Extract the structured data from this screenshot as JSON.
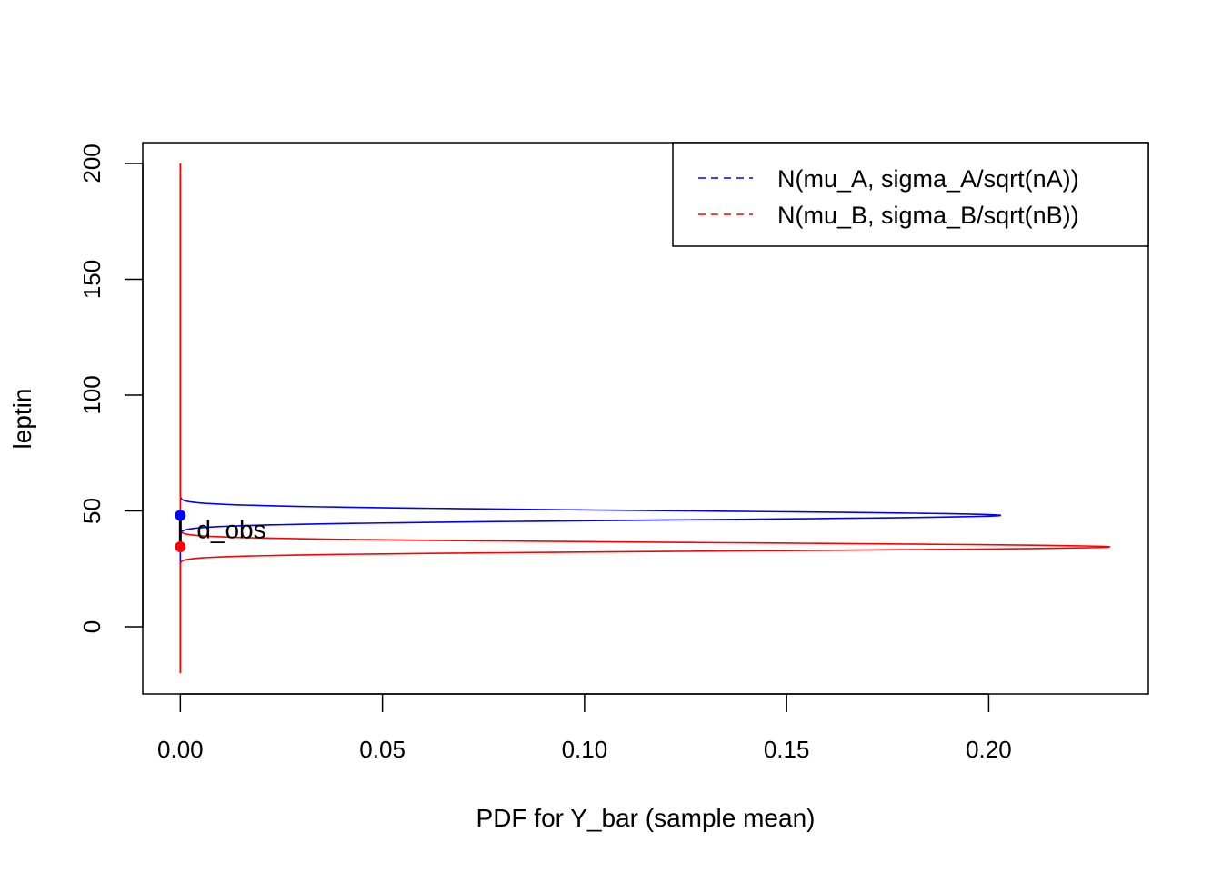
{
  "chart_data": {
    "type": "line",
    "title": "",
    "xlabel": "PDF for Y_bar (sample mean)",
    "ylabel": "leptin",
    "xlim": [
      -0.0093,
      0.2395
    ],
    "ylim": [
      -29,
      209
    ],
    "x_ticks": [
      0,
      0.05,
      0.1,
      0.15,
      0.2
    ],
    "x_tick_labels": [
      "0.00",
      "0.05",
      "0.10",
      "0.15",
      "0.20"
    ],
    "y_ticks": [
      0,
      50,
      100,
      150,
      200
    ],
    "y_tick_labels": [
      "0",
      "50",
      "100",
      "150",
      "200"
    ],
    "grid": false,
    "legend_position": "top-right",
    "series": [
      {
        "name": "N(mu_A, sigma_A/sqrt(nA))",
        "color": "#0000ff",
        "line_style": "dashed",
        "mean": 48.1,
        "sd": 1.965,
        "y_range": [
          -20,
          200
        ]
      },
      {
        "name": "N(mu_B, sigma_B/sqrt(nB))",
        "color": "#ff0000",
        "line_style": "dashed",
        "mean": 34.5,
        "sd": 1.735,
        "y_range": [
          -20,
          200
        ]
      }
    ],
    "points": [
      {
        "x": 0,
        "y": 48.1,
        "color": "#0000ff"
      },
      {
        "x": 0,
        "y": 34.5,
        "color": "#ff0000"
      }
    ],
    "annotation": {
      "text": "d_obs",
      "segment": {
        "x": 0,
        "y1": 48.1,
        "y2": 34.5,
        "color": "#000000"
      }
    }
  }
}
